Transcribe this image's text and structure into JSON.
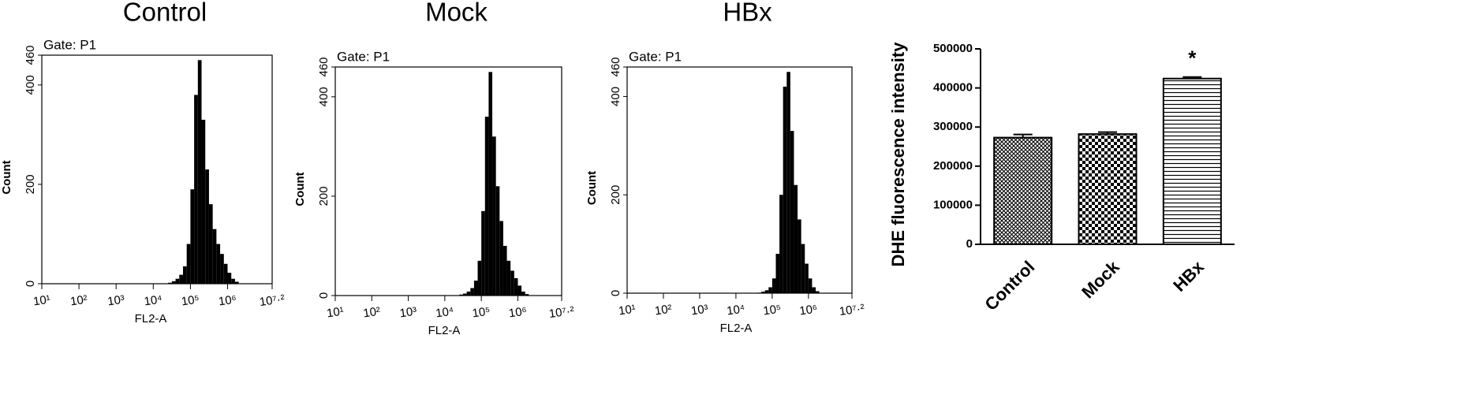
{
  "chart_data": [
    {
      "type": "histogram",
      "title": "Control",
      "annotation": "Gate: P1",
      "xlabel": "FL2-A",
      "ylabel": "Count",
      "xscale": "log",
      "color": "#000000",
      "bins": [
        25119,
        31623,
        39811,
        50119,
        63096,
        79433,
        100000,
        125893,
        158489,
        199526,
        251189,
        316228,
        398107,
        501187,
        630957,
        794328,
        1000000,
        1258925,
        1584893,
        1995262
      ],
      "counts": [
        2,
        5,
        10,
        18,
        35,
        80,
        190,
        380,
        450,
        330,
        230,
        160,
        110,
        80,
        60,
        40,
        22,
        10,
        4
      ],
      "xlim": [
        10,
        15848932
      ],
      "xticks": [
        {
          "value": 10,
          "label": "10¹"
        },
        {
          "value": 100,
          "label": "10²"
        },
        {
          "value": 1000,
          "label": "10³"
        },
        {
          "value": 10000,
          "label": "10⁴"
        },
        {
          "value": 100000,
          "label": "10⁵"
        },
        {
          "value": 1000000,
          "label": "10⁶"
        },
        {
          "value": 15848932,
          "label": "10⁷·²"
        }
      ],
      "ylim": [
        0,
        460
      ],
      "yticks": [
        0,
        200,
        400,
        460
      ]
    },
    {
      "type": "histogram",
      "title": "Mock",
      "annotation": "Gate: P1",
      "xlabel": "FL2-A",
      "ylabel": "Count",
      "xscale": "log",
      "color": "#000000",
      "bins": [
        25119,
        31623,
        39811,
        50119,
        63096,
        79433,
        100000,
        125893,
        158489,
        199526,
        251189,
        316228,
        398107,
        501187,
        630957,
        794328,
        1000000,
        1258925,
        1584893,
        1995262
      ],
      "counts": [
        2,
        4,
        8,
        15,
        30,
        70,
        170,
        360,
        450,
        320,
        220,
        150,
        100,
        70,
        50,
        35,
        20,
        8,
        3
      ],
      "xlim": [
        10,
        15848932
      ],
      "xticks": [
        {
          "value": 10,
          "label": "10¹"
        },
        {
          "value": 100,
          "label": "10²"
        },
        {
          "value": 1000,
          "label": "10³"
        },
        {
          "value": 10000,
          "label": "10⁴"
        },
        {
          "value": 100000,
          "label": "10⁵"
        },
        {
          "value": 1000000,
          "label": "10⁶"
        },
        {
          "value": 15848932,
          "label": "10⁷·²"
        }
      ],
      "ylim": [
        0,
        460
      ],
      "yticks": [
        0,
        200,
        400,
        460
      ]
    },
    {
      "type": "histogram",
      "title": "HBx",
      "annotation": "Gate: P1",
      "xlabel": "FL2-A",
      "ylabel": "Count",
      "xscale": "log",
      "color": "#000000",
      "bins": [
        25119,
        31623,
        39811,
        50119,
        63096,
        79433,
        100000,
        125893,
        158489,
        199526,
        251189,
        316228,
        398107,
        501187,
        630957,
        794328,
        1000000,
        1258925,
        1584893,
        1995262
      ],
      "counts": [
        0,
        0,
        1,
        3,
        6,
        12,
        30,
        80,
        200,
        420,
        450,
        330,
        220,
        150,
        100,
        60,
        30,
        12,
        4
      ],
      "xlim": [
        10,
        15848932
      ],
      "xticks": [
        {
          "value": 10,
          "label": "10¹"
        },
        {
          "value": 100,
          "label": "10²"
        },
        {
          "value": 1000,
          "label": "10³"
        },
        {
          "value": 10000,
          "label": "10⁴"
        },
        {
          "value": 100000,
          "label": "10⁵"
        },
        {
          "value": 1000000,
          "label": "10⁶"
        },
        {
          "value": 15848932,
          "label": "10⁷·²"
        }
      ],
      "ylim": [
        0,
        460
      ],
      "yticks": [
        0,
        200,
        400,
        460
      ]
    },
    {
      "type": "bar",
      "ylabel": "DHE fluorescence intensity",
      "categories": [
        "Control",
        "Mock",
        "HBx"
      ],
      "values": [
        273000,
        282000,
        424000
      ],
      "errors": [
        8000,
        5000,
        4000
      ],
      "significance": [
        null,
        null,
        "*"
      ],
      "patterns": [
        "crosshatch",
        "checker",
        "hlines"
      ],
      "ylim": [
        0,
        500000
      ],
      "yticks": [
        0,
        100000,
        200000,
        300000,
        400000,
        500000
      ]
    }
  ]
}
